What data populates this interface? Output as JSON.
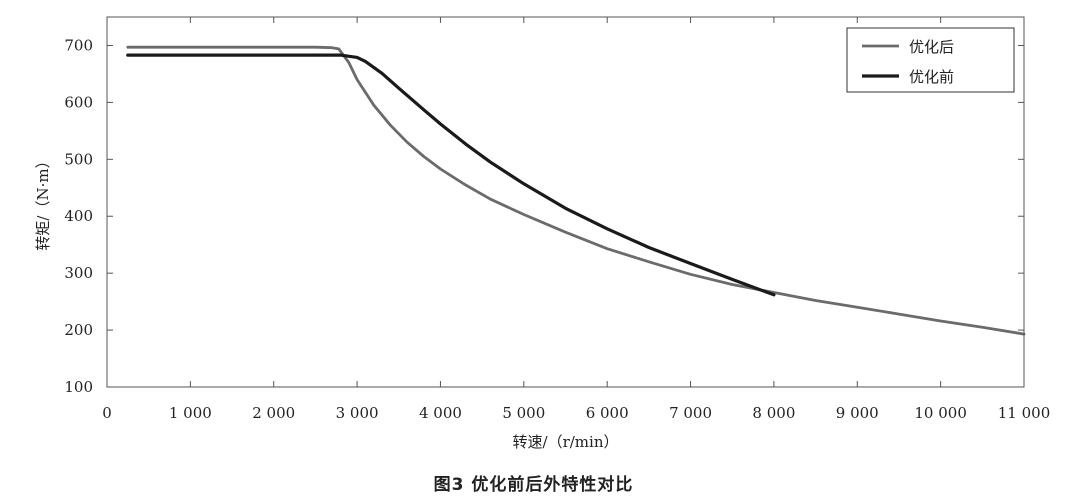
{
  "chart_data": {
    "type": "line",
    "title": "",
    "xlabel": "转速/（r/min）",
    "ylabel": "转矩/（N·m）",
    "xlim": [
      0,
      11000
    ],
    "ylim": [
      100,
      750
    ],
    "x_ticks": [
      0,
      1000,
      2000,
      3000,
      4000,
      5000,
      6000,
      7000,
      8000,
      9000,
      10000,
      11000
    ],
    "x_tick_labels": [
      "0",
      "1 000",
      "2 000",
      "3 000",
      "4 000",
      "5 000",
      "6 000",
      "7 000",
      "8 000",
      "9 000",
      "10 000",
      "11 000"
    ],
    "y_ticks": [
      100,
      200,
      300,
      400,
      500,
      600,
      700
    ],
    "y_tick_labels": [
      "100",
      "200",
      "300",
      "400",
      "500",
      "600",
      "700"
    ],
    "grid": false,
    "legend_position": "top-right",
    "series": [
      {
        "name": "优化后",
        "color": "#6b6b6b",
        "x": [
          250,
          1000,
          2000,
          2500,
          2700,
          2780,
          2900,
          3000,
          3200,
          3400,
          3600,
          3800,
          4000,
          4300,
          4600,
          5000,
          5500,
          6000,
          6500,
          7000,
          7500,
          8000,
          8500,
          9000,
          9500,
          10000,
          10500,
          11000
        ],
        "y": [
          697,
          697,
          697,
          697,
          696,
          694,
          670,
          640,
          595,
          560,
          530,
          505,
          483,
          455,
          430,
          403,
          372,
          343,
          320,
          298,
          280,
          266,
          252,
          240,
          228,
          216,
          205,
          193
        ]
      },
      {
        "name": "优化前",
        "color": "#1a1a1a",
        "x": [
          250,
          1000,
          2000,
          2800,
          3000,
          3100,
          3300,
          3500,
          3800,
          4000,
          4300,
          4600,
          5000,
          5500,
          6000,
          6500,
          7000,
          7500,
          8000
        ],
        "y": [
          683,
          683,
          683,
          683,
          679,
          672,
          651,
          625,
          587,
          562,
          527,
          495,
          457,
          414,
          378,
          345,
          317,
          289,
          262
        ]
      }
    ]
  },
  "caption": "图3   优化前后外特性对比"
}
